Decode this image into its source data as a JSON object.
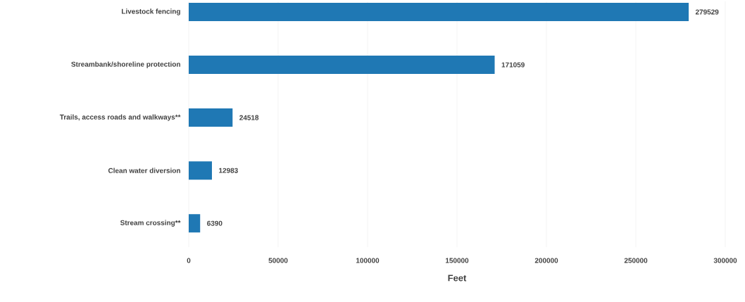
{
  "chart_data": {
    "type": "bar",
    "orientation": "horizontal",
    "xlabel": "Feet",
    "categories": [
      "Livestock fencing",
      "Streambank/shoreline protection",
      "Trails, access roads and walkways**",
      "Clean water diversion",
      "Stream crossing**"
    ],
    "values": [
      279529,
      171059,
      24518,
      12983,
      6390
    ],
    "color": "#1f78b4",
    "data_labels": true,
    "grid": "x",
    "xlim": [
      0,
      300000
    ],
    "xticks": [
      0,
      50000,
      100000,
      150000,
      200000,
      250000,
      300000
    ]
  }
}
